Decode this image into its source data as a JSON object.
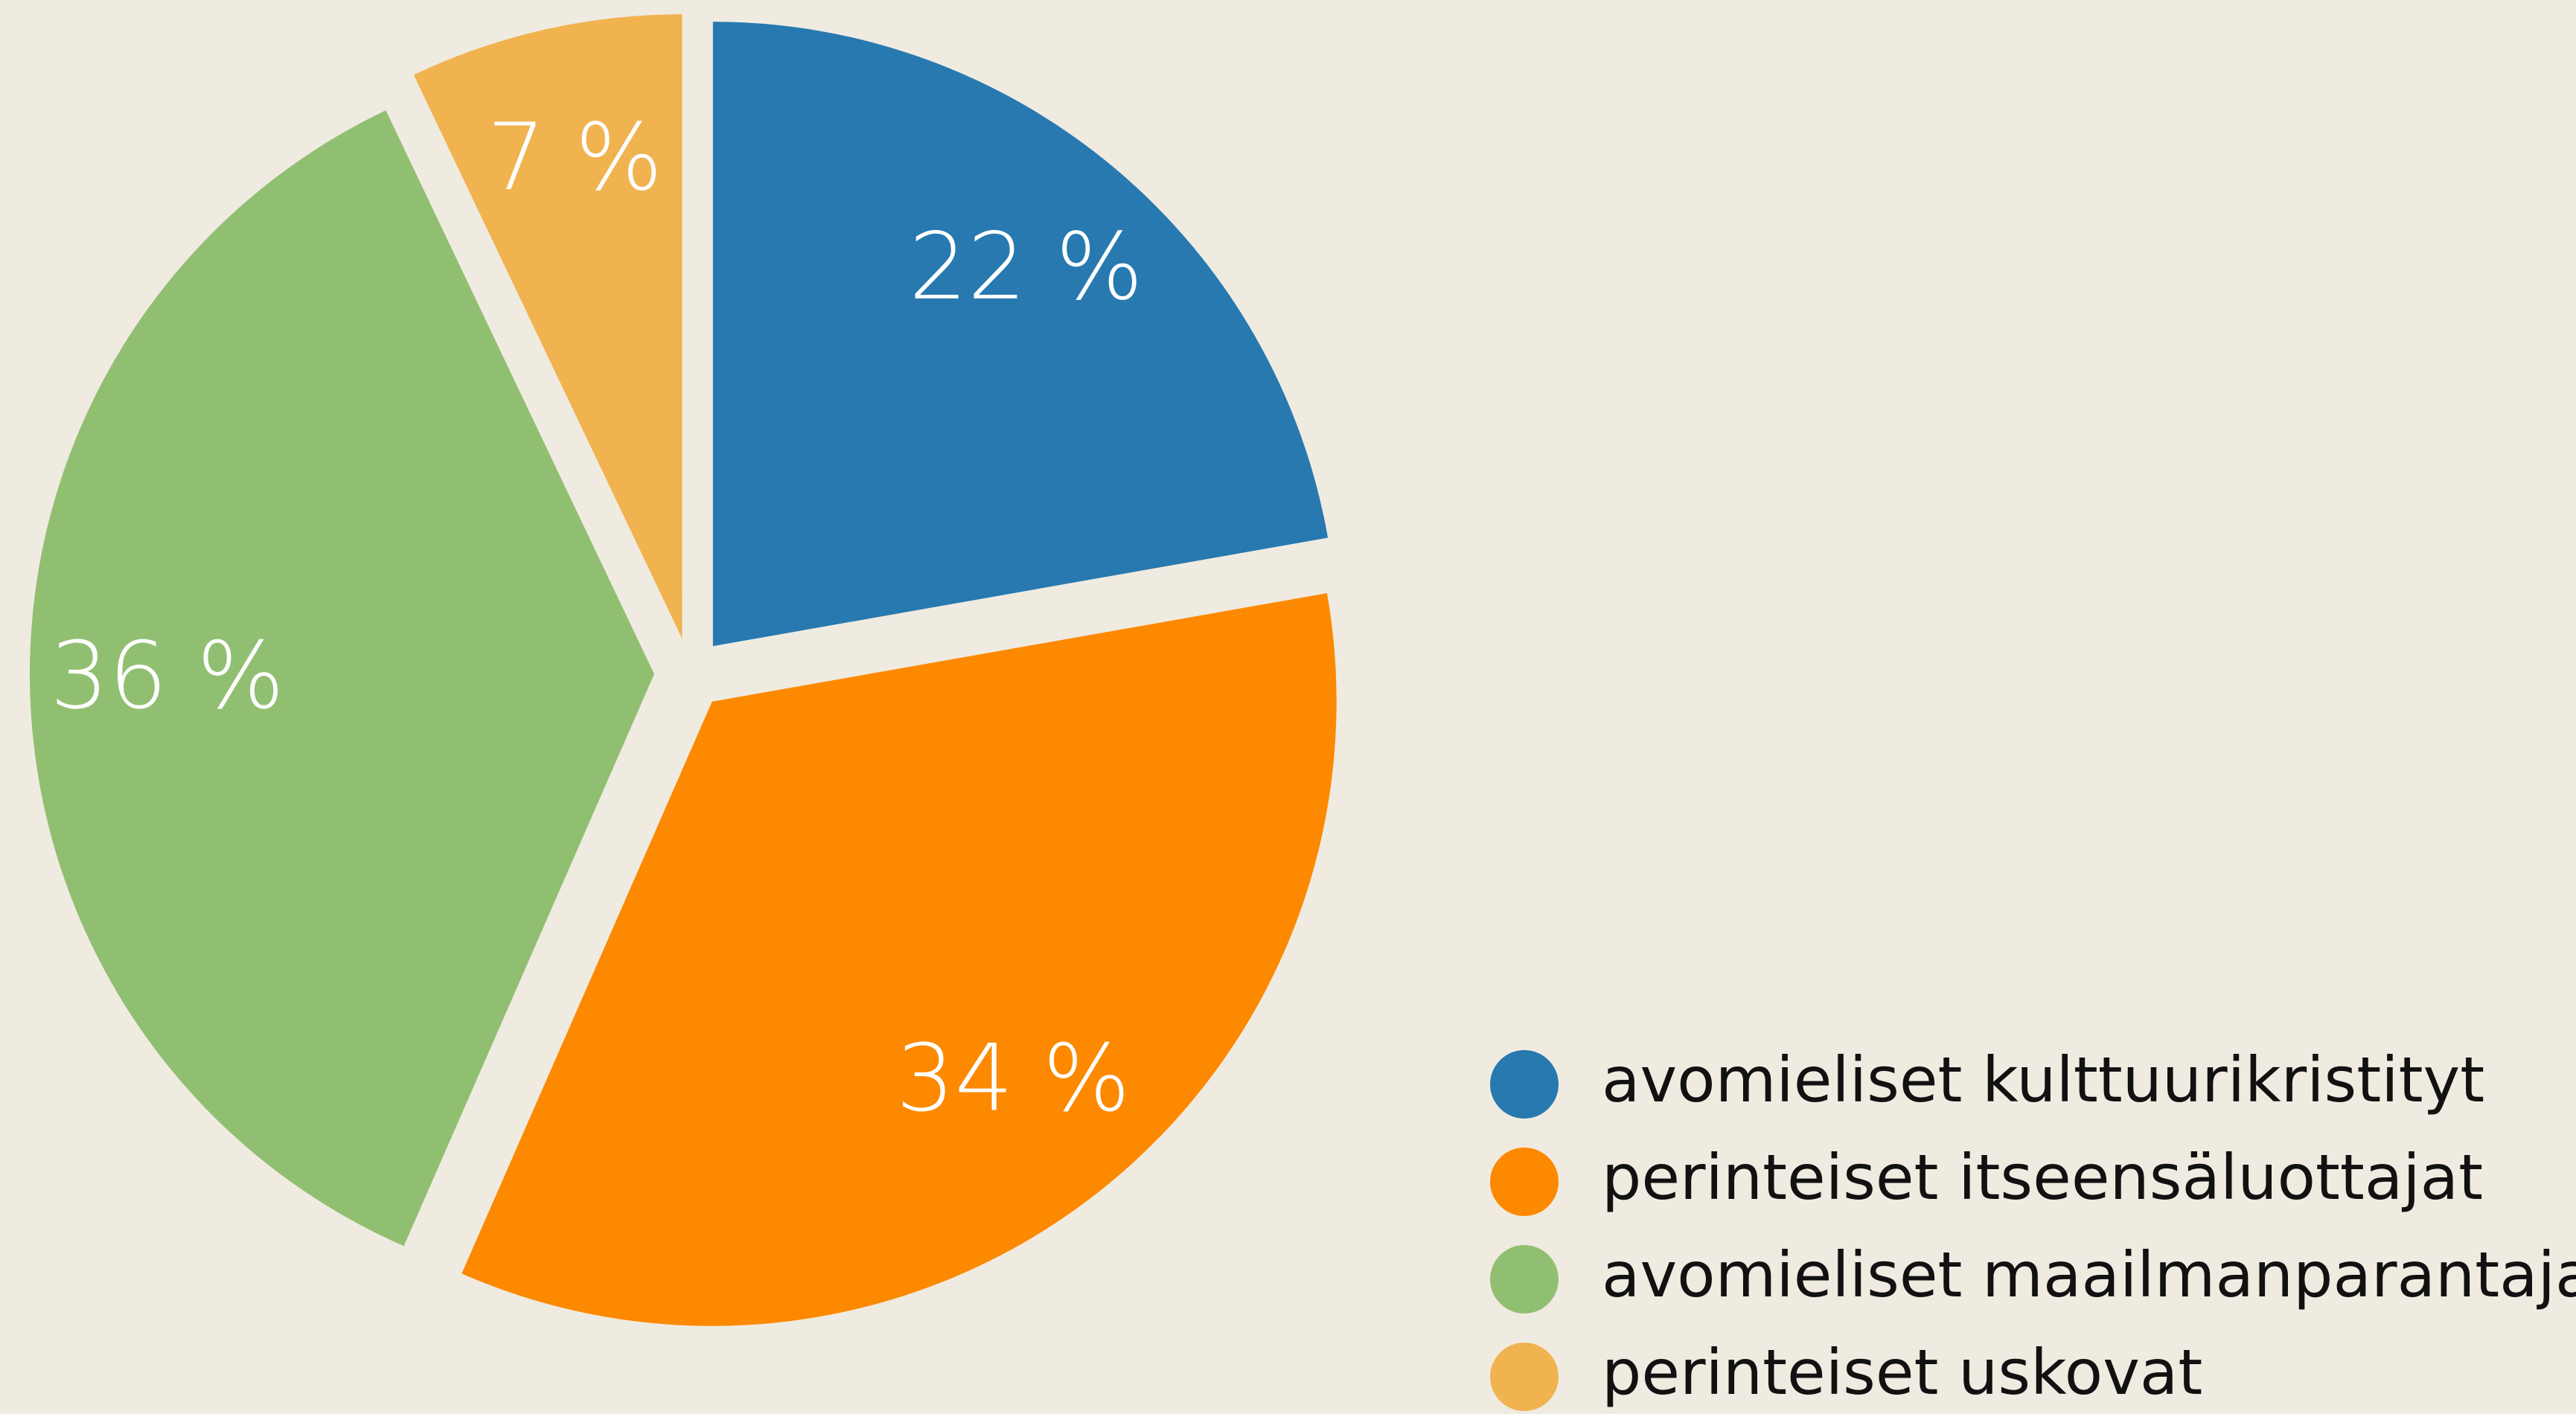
{
  "chart_data": {
    "type": "pie",
    "categories": [
      "avomieliset kulttuurikristityt",
      "perinteiset itseensäluottajat",
      "avomieliset maailmanparantajat",
      "perinteiset uskovat"
    ],
    "values": [
      22,
      34,
      36,
      7
    ],
    "value_labels": [
      "22 %",
      "34 %",
      "36 %",
      "7 %"
    ],
    "colors": [
      "#2779b0",
      "#fd8900",
      "#91bf72",
      "#f0b350"
    ],
    "legend": "bottom-right"
  }
}
